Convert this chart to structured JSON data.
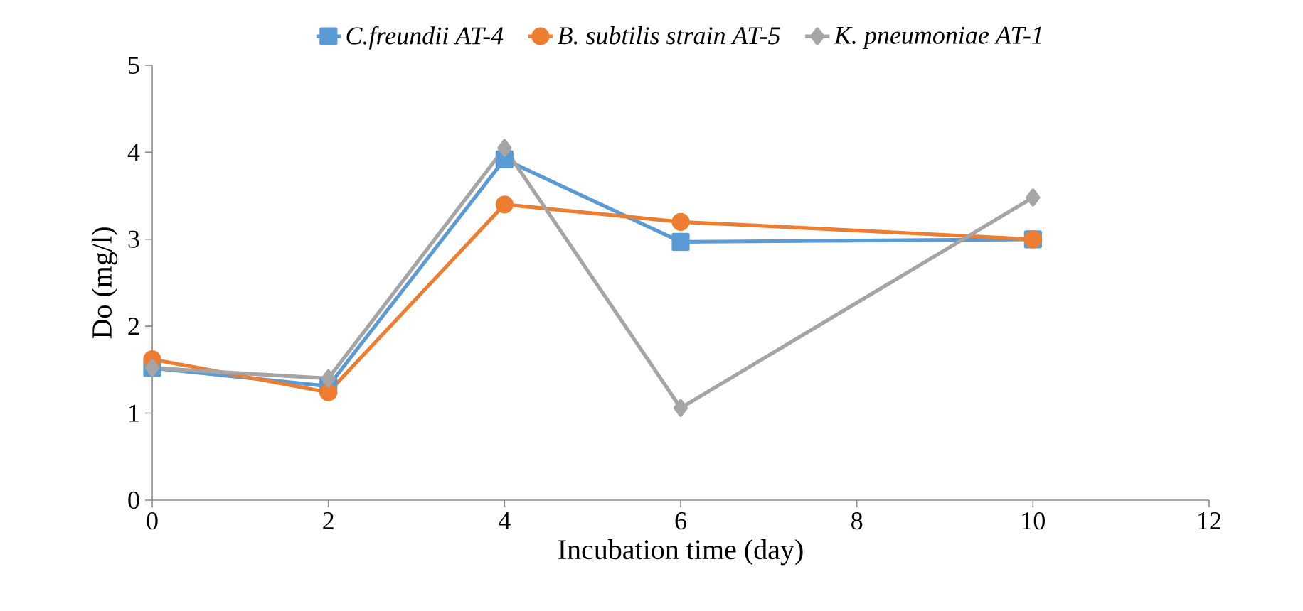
{
  "chart_data": {
    "type": "line",
    "xlabel": "Incubation time (day)",
    "ylabel": "Do (mg/l)",
    "x": [
      0,
      2,
      4,
      6,
      10
    ],
    "series": [
      {
        "name": "C.freundii AT-4",
        "color": "#5b9bd5",
        "marker": "square",
        "values": [
          1.52,
          1.31,
          3.92,
          2.97,
          3.0
        ]
      },
      {
        "name": "B. subtilis strain AT-5",
        "color": "#ed7d31",
        "marker": "circle",
        "values": [
          1.62,
          1.24,
          3.4,
          3.2,
          3.0
        ]
      },
      {
        "name": "K. pneumoniae AT-1",
        "color": "#a5a5a5",
        "marker": "diamond",
        "values": [
          1.52,
          1.4,
          4.05,
          1.06,
          3.48
        ]
      }
    ],
    "xlim": [
      0,
      12
    ],
    "xticks": [
      0,
      2,
      4,
      6,
      8,
      10,
      12
    ],
    "ylim": [
      0,
      5
    ],
    "yticks": [
      0,
      1,
      2,
      3,
      4,
      5
    ],
    "grid": false,
    "legend": "top",
    "line_style": "solid"
  }
}
